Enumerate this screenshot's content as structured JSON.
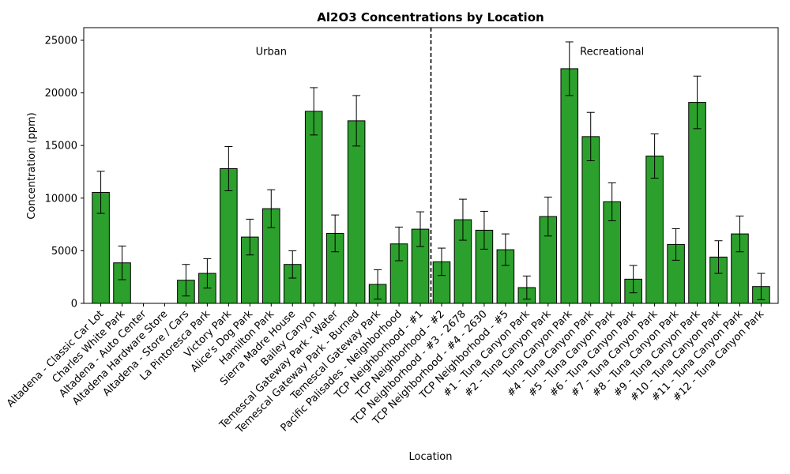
{
  "chart_data": {
    "type": "bar",
    "title": "Al2O3 Concentrations by Location",
    "xlabel": "Location",
    "ylabel": "Concentration (ppm)",
    "ylim": [
      0,
      26200
    ],
    "yticks": [
      0,
      5000,
      10000,
      15000,
      20000,
      25000
    ],
    "grid": false,
    "bar_color": "#2ca02c",
    "categories": [
      "Altadena - Classic Car Lot",
      "Charles White Park",
      "Altadena - Auto Center",
      "Altadena Hardware Store",
      "Altadena - Store / Cars",
      "La Pintoresca Park",
      "Victory Park",
      "Alice's Dog Park",
      "Hamilton Park",
      "Sierra Madre House",
      "Bailey Canyon",
      "Temescal Gateway Park - Water",
      "Temescal Gateway Park - Burned",
      "Temescal Gateway Park",
      "Pacific Palisades - Neighborhood",
      "TCP Neighborhood - #1",
      "TCP Neighborhood - #2",
      "TCP Neighborhood - #3 - 2678",
      "TCP Neighborhood - #4 - 2630",
      "TCP Neighborhood - #5",
      "#1 - Tuna Canyon Park",
      "#2 - Tuna Canyon Park",
      "Tuna Canyon Park",
      "#4 - Tuna Canyon Park",
      "#5 - Tuna Canyon Park",
      "#6 - Tuna Canyon Park",
      "#7 - Tuna Canyon Park",
      "#8 - Tuna Canyon Park",
      "#9 - Tuna Canyon Park",
      "#10 - Tuna Canyon Park",
      "#11 - Tuna Canyon Park",
      "#12 - Tuna Canyon Park"
    ],
    "values": [
      10550,
      3850,
      0,
      0,
      2200,
      2850,
      12800,
      6300,
      9000,
      3700,
      18250,
      6650,
      17350,
      1800,
      5650,
      7050,
      3950,
      7950,
      6950,
      5100,
      1500,
      8250,
      22300,
      15850,
      9650,
      2300,
      14000,
      5600,
      19100,
      4400,
      6600,
      1600
    ],
    "errors": [
      2000,
      1600,
      0,
      0,
      1500,
      1400,
      2100,
      1700,
      1800,
      1300,
      2250,
      1750,
      2400,
      1400,
      1600,
      1650,
      1300,
      1950,
      1800,
      1500,
      1100,
      1850,
      2550,
      2300,
      1800,
      1300,
      2100,
      1500,
      2500,
      1550,
      1700,
      1250
    ],
    "annotations": [
      {
        "text": "Urban",
        "x": 8.0,
        "y": 24000
      },
      {
        "text": "Recreational",
        "x": 24.0,
        "y": 24000
      }
    ],
    "divider_after_index": 15
  }
}
